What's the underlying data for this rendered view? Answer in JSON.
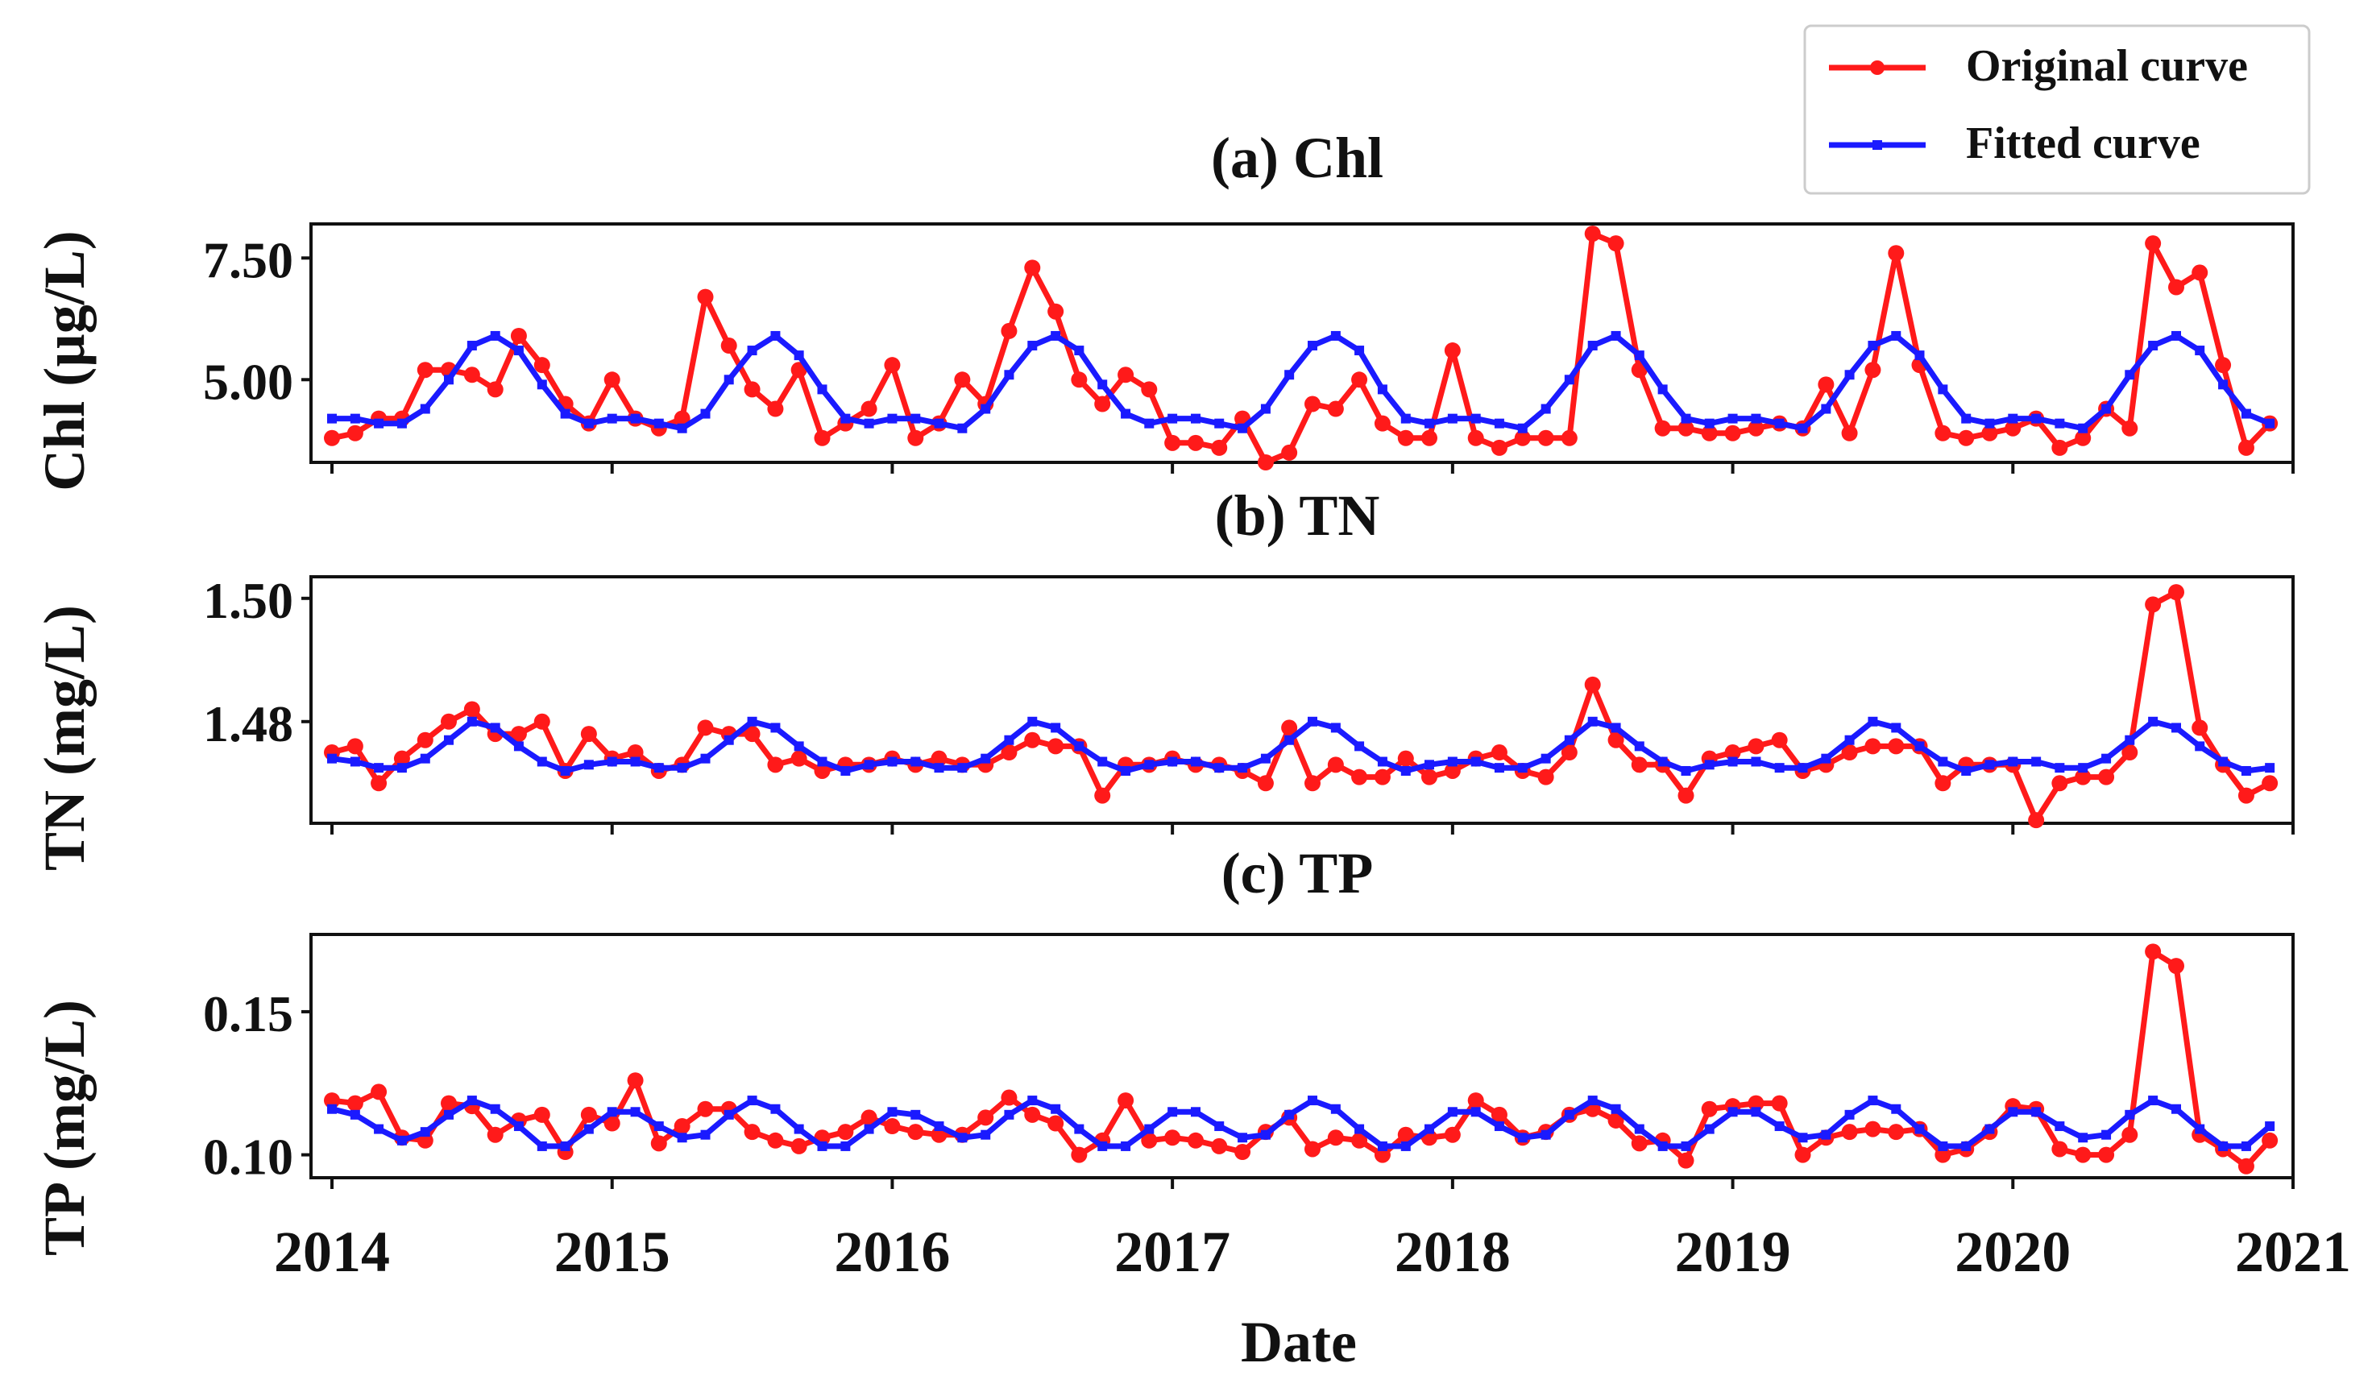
{
  "figure": {
    "legend": [
      {
        "label": "Original curve",
        "color": "#ff1a1a"
      },
      {
        "label": "Fitted curve",
        "color": "#1a1aff"
      }
    ],
    "xlabel": "Date",
    "x_ticks": [
      "2014",
      "2015",
      "2016",
      "2017",
      "2018",
      "2019",
      "2020",
      "2021"
    ]
  },
  "chart_data": [
    {
      "type": "line",
      "title": "(a) Chl",
      "ylabel": "Chl (µg/L)",
      "xlim": [
        2014.0,
        2021.0
      ],
      "ylim": [
        3.3,
        8.2
      ],
      "yticks": [
        5.0,
        7.5
      ],
      "ytick_labels": [
        "5.00",
        "7.50"
      ],
      "x": [
        2014.0,
        2014.083,
        2014.167,
        2014.25,
        2014.333,
        2014.417,
        2014.5,
        2014.583,
        2014.667,
        2014.75,
        2014.833,
        2014.917,
        2015.0,
        2015.083,
        2015.167,
        2015.25,
        2015.333,
        2015.417,
        2015.5,
        2015.583,
        2015.667,
        2015.75,
        2015.833,
        2015.917,
        2016.0,
        2016.083,
        2016.167,
        2016.25,
        2016.333,
        2016.417,
        2016.5,
        2016.583,
        2016.667,
        2016.75,
        2016.833,
        2016.917,
        2017.0,
        2017.083,
        2017.167,
        2017.25,
        2017.333,
        2017.417,
        2017.5,
        2017.583,
        2017.667,
        2017.75,
        2017.833,
        2017.917,
        2018.0,
        2018.083,
        2018.167,
        2018.25,
        2018.333,
        2018.417,
        2018.5,
        2018.583,
        2018.667,
        2018.75,
        2018.833,
        2018.917,
        2019.0,
        2019.083,
        2019.167,
        2019.25,
        2019.333,
        2019.417,
        2019.5,
        2019.583,
        2019.667,
        2019.75,
        2019.833,
        2019.917,
        2020.0,
        2020.083,
        2020.167,
        2020.25,
        2020.333,
        2020.417,
        2020.5,
        2020.583,
        2020.667,
        2020.75,
        2020.833,
        2020.917
      ],
      "series": [
        {
          "name": "Original curve",
          "color": "#ff1a1a",
          "values": [
            3.8,
            3.9,
            4.2,
            4.2,
            5.2,
            5.2,
            5.1,
            4.8,
            5.9,
            5.3,
            4.5,
            4.1,
            5.0,
            4.2,
            4.0,
            4.2,
            6.7,
            5.7,
            4.8,
            4.4,
            5.2,
            3.8,
            4.1,
            4.4,
            5.3,
            3.8,
            4.1,
            5.0,
            4.5,
            6.0,
            7.3,
            6.4,
            5.0,
            4.5,
            5.1,
            4.8,
            3.7,
            3.7,
            3.6,
            4.2,
            3.3,
            3.5,
            4.5,
            4.4,
            5.0,
            4.1,
            3.8,
            3.8,
            5.6,
            3.8,
            3.6,
            3.8,
            3.8,
            3.8,
            8.0,
            7.8,
            5.2,
            4.0,
            4.0,
            3.9,
            3.9,
            4.0,
            4.1,
            4.0,
            4.9,
            3.9,
            5.2,
            7.6,
            5.3,
            3.9,
            3.8,
            3.9,
            4.0,
            4.2,
            3.6,
            3.8,
            4.4,
            4.0,
            7.8,
            6.9,
            7.2,
            5.3,
            3.6,
            4.1
          ]
        },
        {
          "name": "Fitted curve",
          "color": "#1a1aff",
          "values": [
            4.2,
            4.2,
            4.1,
            4.1,
            4.4,
            5.0,
            5.7,
            5.9,
            5.6,
            4.9,
            4.3,
            4.1,
            4.2,
            4.2,
            4.1,
            4.0,
            4.3,
            5.0,
            5.6,
            5.9,
            5.5,
            4.8,
            4.2,
            4.1,
            4.2,
            4.2,
            4.1,
            4.0,
            4.4,
            5.1,
            5.7,
            5.9,
            5.6,
            4.9,
            4.3,
            4.1,
            4.2,
            4.2,
            4.1,
            4.0,
            4.4,
            5.1,
            5.7,
            5.9,
            5.6,
            4.8,
            4.2,
            4.1,
            4.2,
            4.2,
            4.1,
            4.0,
            4.4,
            5.0,
            5.7,
            5.9,
            5.5,
            4.8,
            4.2,
            4.1,
            4.2,
            4.2,
            4.1,
            4.0,
            4.4,
            5.1,
            5.7,
            5.9,
            5.5,
            4.8,
            4.2,
            4.1,
            4.2,
            4.2,
            4.1,
            4.0,
            4.4,
            5.1,
            5.7,
            5.9,
            5.6,
            4.9,
            4.3,
            4.1
          ]
        }
      ]
    },
    {
      "type": "line",
      "title": "(b) TN",
      "ylabel": "TN (mg/L)",
      "xlim": [
        2014.0,
        2021.0
      ],
      "ylim": [
        1.4635,
        1.5035
      ],
      "yticks": [
        1.48,
        1.5
      ],
      "ytick_labels": [
        "1.48",
        "1.50"
      ],
      "x": [
        2014.0,
        2014.083,
        2014.167,
        2014.25,
        2014.333,
        2014.417,
        2014.5,
        2014.583,
        2014.667,
        2014.75,
        2014.833,
        2014.917,
        2015.0,
        2015.083,
        2015.167,
        2015.25,
        2015.333,
        2015.417,
        2015.5,
        2015.583,
        2015.667,
        2015.75,
        2015.833,
        2015.917,
        2016.0,
        2016.083,
        2016.167,
        2016.25,
        2016.333,
        2016.417,
        2016.5,
        2016.583,
        2016.667,
        2016.75,
        2016.833,
        2016.917,
        2017.0,
        2017.083,
        2017.167,
        2017.25,
        2017.333,
        2017.417,
        2017.5,
        2017.583,
        2017.667,
        2017.75,
        2017.833,
        2017.917,
        2018.0,
        2018.083,
        2018.167,
        2018.25,
        2018.333,
        2018.417,
        2018.5,
        2018.583,
        2018.667,
        2018.75,
        2018.833,
        2018.917,
        2019.0,
        2019.083,
        2019.167,
        2019.25,
        2019.333,
        2019.417,
        2019.5,
        2019.583,
        2019.667,
        2019.75,
        2019.833,
        2019.917,
        2020.0,
        2020.083,
        2020.167,
        2020.25,
        2020.333,
        2020.417,
        2020.5,
        2020.583,
        2020.667,
        2020.75,
        2020.833,
        2020.917
      ],
      "series": [
        {
          "name": "Original curve",
          "color": "#ff1a1a",
          "values": [
            1.475,
            1.476,
            1.47,
            1.474,
            1.477,
            1.48,
            1.482,
            1.478,
            1.478,
            1.48,
            1.472,
            1.478,
            1.474,
            1.475,
            1.472,
            1.473,
            1.479,
            1.478,
            1.478,
            1.473,
            1.474,
            1.472,
            1.473,
            1.473,
            1.474,
            1.473,
            1.474,
            1.473,
            1.473,
            1.475,
            1.477,
            1.476,
            1.476,
            1.468,
            1.473,
            1.473,
            1.474,
            1.473,
            1.473,
            1.472,
            1.47,
            1.479,
            1.47,
            1.473,
            1.471,
            1.471,
            1.474,
            1.471,
            1.472,
            1.474,
            1.475,
            1.472,
            1.471,
            1.475,
            1.486,
            1.477,
            1.473,
            1.473,
            1.468,
            1.474,
            1.475,
            1.476,
            1.477,
            1.472,
            1.473,
            1.475,
            1.476,
            1.476,
            1.476,
            1.47,
            1.473,
            1.473,
            1.473,
            1.464,
            1.47,
            1.471,
            1.471,
            1.475,
            1.499,
            1.501,
            1.479,
            1.473,
            1.468,
            1.47
          ]
        },
        {
          "name": "Fitted curve",
          "color": "#1a1aff",
          "values": [
            1.474,
            1.4735,
            1.4725,
            1.4725,
            1.474,
            1.477,
            1.48,
            1.479,
            1.476,
            1.4735,
            1.472,
            1.473,
            1.4735,
            1.4735,
            1.4725,
            1.4725,
            1.474,
            1.477,
            1.48,
            1.479,
            1.476,
            1.4735,
            1.472,
            1.473,
            1.4735,
            1.4735,
            1.4725,
            1.4725,
            1.474,
            1.477,
            1.48,
            1.479,
            1.476,
            1.4735,
            1.472,
            1.473,
            1.4735,
            1.4735,
            1.4725,
            1.4725,
            1.474,
            1.477,
            1.48,
            1.479,
            1.476,
            1.4735,
            1.472,
            1.473,
            1.4735,
            1.4735,
            1.4725,
            1.4725,
            1.474,
            1.477,
            1.48,
            1.479,
            1.476,
            1.4735,
            1.472,
            1.473,
            1.4735,
            1.4735,
            1.4725,
            1.4725,
            1.474,
            1.477,
            1.48,
            1.479,
            1.476,
            1.4735,
            1.472,
            1.473,
            1.4735,
            1.4735,
            1.4725,
            1.4725,
            1.474,
            1.477,
            1.48,
            1.479,
            1.476,
            1.4735,
            1.472,
            1.4725
          ]
        }
      ]
    },
    {
      "type": "line",
      "title": "(c) TP",
      "ylabel": "TP (mg/L)",
      "xlim": [
        2014.0,
        2021.0
      ],
      "ylim": [
        0.092,
        0.177
      ],
      "yticks": [
        0.1,
        0.15
      ],
      "ytick_labels": [
        "0.10",
        "0.15"
      ],
      "x": [
        2014.0,
        2014.083,
        2014.167,
        2014.25,
        2014.333,
        2014.417,
        2014.5,
        2014.583,
        2014.667,
        2014.75,
        2014.833,
        2014.917,
        2015.0,
        2015.083,
        2015.167,
        2015.25,
        2015.333,
        2015.417,
        2015.5,
        2015.583,
        2015.667,
        2015.75,
        2015.833,
        2015.917,
        2016.0,
        2016.083,
        2016.167,
        2016.25,
        2016.333,
        2016.417,
        2016.5,
        2016.583,
        2016.667,
        2016.75,
        2016.833,
        2016.917,
        2017.0,
        2017.083,
        2017.167,
        2017.25,
        2017.333,
        2017.417,
        2017.5,
        2017.583,
        2017.667,
        2017.75,
        2017.833,
        2017.917,
        2018.0,
        2018.083,
        2018.167,
        2018.25,
        2018.333,
        2018.417,
        2018.5,
        2018.583,
        2018.667,
        2018.75,
        2018.833,
        2018.917,
        2019.0,
        2019.083,
        2019.167,
        2019.25,
        2019.333,
        2019.417,
        2019.5,
        2019.583,
        2019.667,
        2019.75,
        2019.833,
        2019.917,
        2020.0,
        2020.083,
        2020.167,
        2020.25,
        2020.333,
        2020.417,
        2020.5,
        2020.583,
        2020.667,
        2020.75,
        2020.833,
        2020.917
      ],
      "series": [
        {
          "name": "Original curve",
          "color": "#ff1a1a",
          "values": [
            0.119,
            0.118,
            0.122,
            0.106,
            0.105,
            0.118,
            0.117,
            0.107,
            0.112,
            0.114,
            0.101,
            0.114,
            0.111,
            0.126,
            0.104,
            0.11,
            0.116,
            0.116,
            0.108,
            0.105,
            0.103,
            0.106,
            0.108,
            0.113,
            0.11,
            0.108,
            0.107,
            0.107,
            0.113,
            0.12,
            0.114,
            0.111,
            0.1,
            0.105,
            0.119,
            0.105,
            0.106,
            0.105,
            0.103,
            0.101,
            0.108,
            0.113,
            0.102,
            0.106,
            0.105,
            0.1,
            0.107,
            0.106,
            0.107,
            0.119,
            0.114,
            0.106,
            0.108,
            0.114,
            0.116,
            0.112,
            0.104,
            0.105,
            0.098,
            0.116,
            0.117,
            0.118,
            0.118,
            0.1,
            0.106,
            0.108,
            0.109,
            0.108,
            0.109,
            0.1,
            0.102,
            0.108,
            0.117,
            0.116,
            0.102,
            0.1,
            0.1,
            0.107,
            0.171,
            0.166,
            0.107,
            0.102,
            0.096,
            0.105
          ]
        },
        {
          "name": "Fitted curve",
          "color": "#1a1aff",
          "values": [
            0.116,
            0.114,
            0.109,
            0.105,
            0.108,
            0.114,
            0.119,
            0.116,
            0.11,
            0.103,
            0.103,
            0.109,
            0.115,
            0.115,
            0.11,
            0.106,
            0.107,
            0.114,
            0.119,
            0.116,
            0.109,
            0.103,
            0.103,
            0.109,
            0.115,
            0.114,
            0.11,
            0.106,
            0.107,
            0.114,
            0.119,
            0.116,
            0.109,
            0.103,
            0.103,
            0.109,
            0.115,
            0.115,
            0.11,
            0.106,
            0.107,
            0.114,
            0.119,
            0.116,
            0.109,
            0.103,
            0.103,
            0.109,
            0.115,
            0.115,
            0.11,
            0.106,
            0.107,
            0.114,
            0.119,
            0.116,
            0.109,
            0.103,
            0.103,
            0.109,
            0.115,
            0.115,
            0.11,
            0.106,
            0.107,
            0.114,
            0.119,
            0.116,
            0.109,
            0.103,
            0.103,
            0.109,
            0.115,
            0.115,
            0.11,
            0.106,
            0.107,
            0.114,
            0.119,
            0.116,
            0.109,
            0.103,
            0.103,
            0.11
          ]
        }
      ]
    }
  ]
}
